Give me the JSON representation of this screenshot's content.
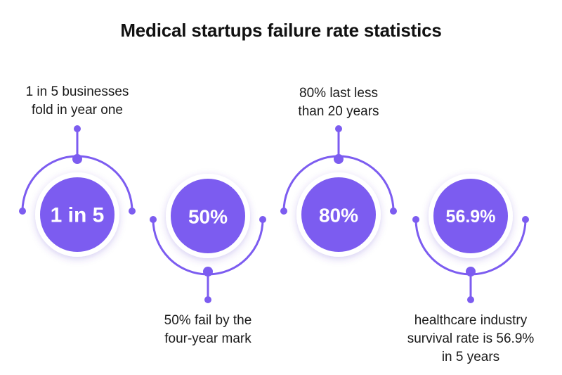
{
  "title": "Medical startups failure rate statistics",
  "colors": {
    "accent": "#7c5cf0",
    "accent_dark": "#6b48e6",
    "circle_fill": "#7c5cf0",
    "background": "#ffffff"
  },
  "stats": [
    {
      "value": "1 in 5",
      "caption": [
        "1 in 5 businesses",
        "fold in year one"
      ]
    },
    {
      "value": "50%",
      "caption": [
        "50% fail by the",
        "four-year mark"
      ]
    },
    {
      "value": "80%",
      "caption": [
        "80% last less",
        "than 20 years"
      ]
    },
    {
      "value": "56.9%",
      "caption": [
        "healthcare industry",
        "survival rate is 56.9%",
        "in 5 years"
      ]
    }
  ]
}
